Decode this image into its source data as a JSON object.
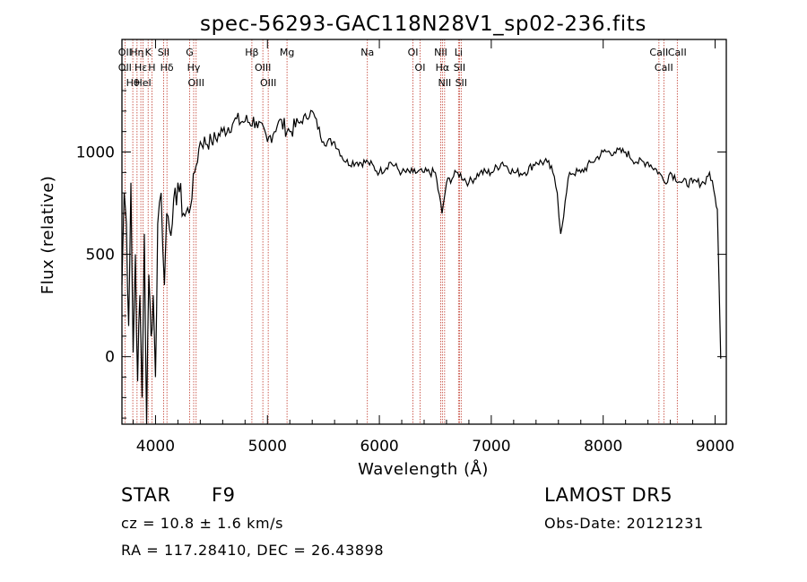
{
  "chart_data": {
    "type": "line",
    "title": "spec-56293-GAC118N28V1_sp02-236.fits",
    "xlabel": "Wavelength (Å)",
    "ylabel": "Flux (relative)",
    "xlim": [
      3700,
      9100
    ],
    "ylim": [
      -330,
      1550
    ],
    "xticks": [
      4000,
      5000,
      6000,
      7000,
      8000,
      9000
    ],
    "yticks": [
      0,
      500,
      1000
    ],
    "grid": false,
    "line_color": "#000000",
    "marker_color": "#c0392b",
    "series": [
      {
        "x": [
          3700,
          3720,
          3740,
          3760,
          3780,
          3800,
          3820,
          3840,
          3860,
          3880,
          3900,
          3920,
          3940,
          3960,
          3980,
          4000,
          4020,
          4050,
          4080,
          4100,
          4150,
          4200,
          4250,
          4300,
          4350,
          4400,
          4500,
          4600,
          4700,
          4800,
          4900,
          5000,
          5100,
          5200,
          5300,
          5400,
          5500,
          5600,
          5700,
          5800,
          5900,
          6000,
          6100,
          6200,
          6300,
          6400,
          6500,
          6560,
          6600,
          6700,
          6800,
          6900,
          7000,
          7100,
          7200,
          7300,
          7400,
          7500,
          7550,
          7590,
          7620,
          7700,
          7800,
          7900,
          8000,
          8100,
          8200,
          8300,
          8400,
          8500,
          8550,
          8600,
          8700,
          8800,
          8900,
          8950,
          9000,
          9020,
          9050
        ],
        "values": [
          350,
          800,
          650,
          150,
          850,
          20,
          500,
          -120,
          300,
          -200,
          600,
          -330,
          400,
          100,
          300,
          -100,
          650,
          800,
          350,
          700,
          650,
          850,
          700,
          700,
          900,
          1050,
          1050,
          1100,
          1150,
          1150,
          1150,
          1050,
          1150,
          1100,
          1150,
          1200,
          1050,
          1050,
          950,
          950,
          950,
          900,
          950,
          900,
          900,
          900,
          900,
          700,
          850,
          900,
          850,
          900,
          900,
          950,
          900,
          900,
          950,
          950,
          900,
          800,
          600,
          900,
          900,
          950,
          1000,
          1000,
          1000,
          950,
          950,
          900,
          850,
          900,
          850,
          850,
          850,
          900,
          780,
          720,
          -10
        ]
      }
    ],
    "line_markers": [
      {
        "wavelength": 3727,
        "labels": [
          "OII",
          "OII"
        ]
      },
      {
        "wavelength": 3797,
        "labels": [
          "Hθ"
        ]
      },
      {
        "wavelength": 3835,
        "labels": [
          "Hη"
        ]
      },
      {
        "wavelength": 3869,
        "labels": [
          "Hε"
        ]
      },
      {
        "wavelength": 3889,
        "labels": [
          "HeI"
        ]
      },
      {
        "wavelength": 3934,
        "labels": [
          "K"
        ]
      },
      {
        "wavelength": 3968,
        "labels": [
          "H"
        ]
      },
      {
        "wavelength": 4072,
        "labels": [
          "SII"
        ]
      },
      {
        "wavelength": 4102,
        "labels": [
          "Hδ"
        ]
      },
      {
        "wavelength": 4305,
        "labels": [
          "G"
        ]
      },
      {
        "wavelength": 4341,
        "labels": [
          "Hγ"
        ]
      },
      {
        "wavelength": 4363,
        "labels": [
          "OIII"
        ]
      },
      {
        "wavelength": 4861,
        "labels": [
          "Hβ"
        ]
      },
      {
        "wavelength": 4959,
        "labels": [
          "OIII"
        ]
      },
      {
        "wavelength": 5007,
        "labels": [
          "OIII"
        ]
      },
      {
        "wavelength": 5175,
        "labels": [
          "Mg"
        ]
      },
      {
        "wavelength": 5893,
        "labels": [
          "Na"
        ]
      },
      {
        "wavelength": 6300,
        "labels": [
          "OI"
        ]
      },
      {
        "wavelength": 6364,
        "labels": [
          "OI"
        ]
      },
      {
        "wavelength": 6548,
        "labels": [
          "NII"
        ]
      },
      {
        "wavelength": 6563,
        "labels": [
          "Hα"
        ]
      },
      {
        "wavelength": 6583,
        "labels": [
          "NII"
        ]
      },
      {
        "wavelength": 6707,
        "labels": [
          "Li"
        ]
      },
      {
        "wavelength": 6716,
        "labels": [
          "SII"
        ]
      },
      {
        "wavelength": 6731,
        "labels": [
          "SII"
        ]
      },
      {
        "wavelength": 8498,
        "labels": [
          "CaII"
        ]
      },
      {
        "wavelength": 8542,
        "labels": [
          "CaII"
        ]
      },
      {
        "wavelength": 8662,
        "labels": [
          "CaII"
        ]
      }
    ]
  },
  "info": {
    "object_class": "STAR",
    "subclass": "F9",
    "redshift": "cz = 10.8 ± 1.6 km/s",
    "coords": "RA = 117.28410, DEC =  26.43898",
    "survey": "LAMOST DR5",
    "obs_date": "Obs-Date: 20121231"
  }
}
